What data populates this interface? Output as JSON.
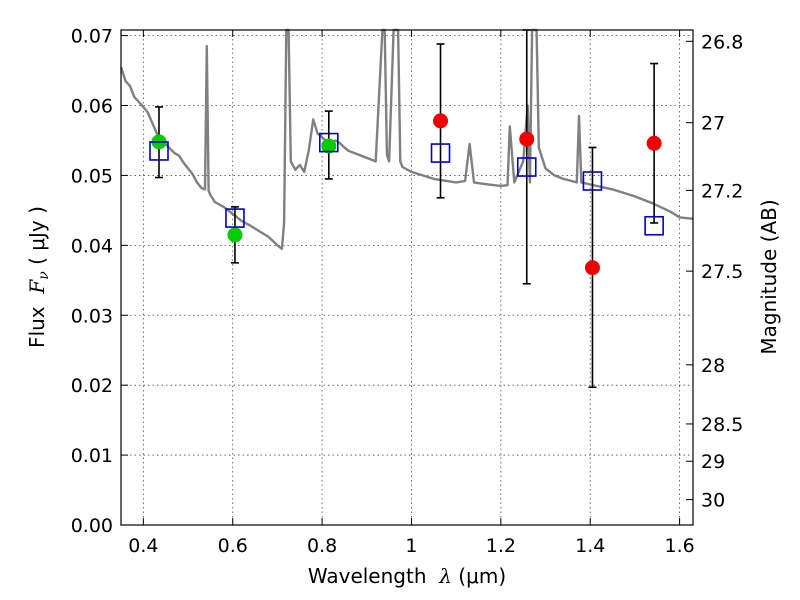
{
  "chart_data": {
    "type": "scatter",
    "xlabel": {
      "prefix": "Wavelength",
      "symbol": "λ",
      "open": " (",
      "unit": "μm",
      "close": ")"
    },
    "ylabel": {
      "prefix": "Flux",
      "symbol": "F",
      "sub": "ν",
      "open": " ( ",
      "unit": "μJy",
      "close": " )"
    },
    "y2label": "Magnitude (AB)",
    "xlim": [
      0.35,
      1.63
    ],
    "ylim": [
      0.0,
      0.0708
    ],
    "grid": true,
    "x_ticks": [
      0.4,
      0.6,
      0.8,
      1.0,
      1.2,
      1.4,
      1.6
    ],
    "x_tick_labels": [
      "0.4",
      "0.6",
      "0.8",
      "1",
      "1.2",
      "1.4",
      "1.6"
    ],
    "y_ticks": [
      0.0,
      0.01,
      0.02,
      0.03,
      0.04,
      0.05,
      0.06,
      0.07
    ],
    "y_tick_labels": [
      "0.00",
      "0.01",
      "0.02",
      "0.03",
      "0.04",
      "0.05",
      "0.06",
      "0.07"
    ],
    "y2_ticks": [
      26.8,
      27,
      27.2,
      27.5,
      28,
      28.5,
      29,
      30
    ],
    "y2_tick_labels": [
      "26.8",
      "27",
      "27.2",
      "27.5",
      "28",
      "28.5",
      "29",
      "30"
    ],
    "colors": {
      "spectrum": "#808080",
      "observed_green": "#00cc00",
      "observed_red": "#ee0000",
      "model": "#0000cc",
      "errorbar": "#000000"
    },
    "series": [
      {
        "kind": "line",
        "points": [
          [
            0.35,
            0.0655
          ],
          [
            0.36,
            0.0635
          ],
          [
            0.37,
            0.0628
          ],
          [
            0.38,
            0.0612
          ],
          [
            0.39,
            0.0605
          ],
          [
            0.4,
            0.0598
          ],
          [
            0.41,
            0.059
          ],
          [
            0.42,
            0.0575
          ],
          [
            0.43,
            0.056
          ],
          [
            0.44,
            0.0553
          ],
          [
            0.45,
            0.0545
          ],
          [
            0.46,
            0.0538
          ],
          [
            0.47,
            0.0532
          ],
          [
            0.48,
            0.0528
          ],
          [
            0.49,
            0.0518
          ],
          [
            0.5,
            0.051
          ],
          [
            0.51,
            0.0502
          ],
          [
            0.52,
            0.049
          ],
          [
            0.53,
            0.0482
          ],
          [
            0.538,
            0.048
          ],
          [
            0.542,
            0.0685
          ],
          [
            0.546,
            0.0478
          ],
          [
            0.55,
            0.0472
          ],
          [
            0.56,
            0.0462
          ],
          [
            0.58,
            0.0455
          ],
          [
            0.6,
            0.0445
          ],
          [
            0.62,
            0.0435
          ],
          [
            0.64,
            0.0428
          ],
          [
            0.66,
            0.042
          ],
          [
            0.68,
            0.0412
          ],
          [
            0.7,
            0.04
          ],
          [
            0.71,
            0.0395
          ],
          [
            0.715,
            0.0432
          ],
          [
            0.72,
            0.0708
          ],
          [
            0.725,
            0.0708
          ],
          [
            0.73,
            0.052
          ],
          [
            0.74,
            0.0508
          ],
          [
            0.75,
            0.0515
          ],
          [
            0.76,
            0.0505
          ],
          [
            0.77,
            0.0535
          ],
          [
            0.78,
            0.058
          ],
          [
            0.79,
            0.056
          ],
          [
            0.8,
            0.0555
          ],
          [
            0.81,
            0.0548
          ],
          [
            0.82,
            0.0545
          ],
          [
            0.83,
            0.055
          ],
          [
            0.84,
            0.0546
          ],
          [
            0.85,
            0.054
          ],
          [
            0.86,
            0.0535
          ],
          [
            0.88,
            0.053
          ],
          [
            0.9,
            0.0525
          ],
          [
            0.92,
            0.052
          ],
          [
            0.935,
            0.0708
          ],
          [
            0.94,
            0.0708
          ],
          [
            0.945,
            0.053
          ],
          [
            0.95,
            0.052
          ],
          [
            0.96,
            0.0708
          ],
          [
            0.97,
            0.0708
          ],
          [
            0.975,
            0.052
          ],
          [
            0.98,
            0.0512
          ],
          [
            1.0,
            0.0505
          ],
          [
            1.05,
            0.0495
          ],
          [
            1.1,
            0.049
          ],
          [
            1.12,
            0.0492
          ],
          [
            1.13,
            0.0545
          ],
          [
            1.14,
            0.049
          ],
          [
            1.16,
            0.0488
          ],
          [
            1.2,
            0.0485
          ],
          [
            1.215,
            0.0486
          ],
          [
            1.22,
            0.057
          ],
          [
            1.23,
            0.049
          ],
          [
            1.25,
            0.052
          ],
          [
            1.26,
            0.06
          ],
          [
            1.265,
            0.049
          ],
          [
            1.27,
            0.0708
          ],
          [
            1.28,
            0.0708
          ],
          [
            1.285,
            0.054
          ],
          [
            1.3,
            0.051
          ],
          [
            1.32,
            0.05
          ],
          [
            1.34,
            0.0495
          ],
          [
            1.37,
            0.049
          ],
          [
            1.375,
            0.0585
          ],
          [
            1.38,
            0.049
          ],
          [
            1.4,
            0.0487
          ],
          [
            1.45,
            0.048
          ],
          [
            1.5,
            0.047
          ],
          [
            1.54,
            0.046
          ],
          [
            1.58,
            0.0448
          ],
          [
            1.6,
            0.044
          ],
          [
            1.63,
            0.0438
          ]
        ]
      },
      {
        "kind": "scatter-errorbar",
        "marker": "circle",
        "color": "#00cc00",
        "points": [
          {
            "x": 0.435,
            "y": 0.0548,
            "y_low": 0.0497,
            "y_high": 0.0598
          },
          {
            "x": 0.605,
            "y": 0.0415,
            "y_low": 0.0375,
            "y_high": 0.0455
          },
          {
            "x": 0.815,
            "y": 0.0542,
            "y_low": 0.0495,
            "y_high": 0.0592
          }
        ]
      },
      {
        "kind": "scatter-errorbar",
        "marker": "circle",
        "color": "#ee0000",
        "points": [
          {
            "x": 1.065,
            "y": 0.0578,
            "y_low": 0.0468,
            "y_high": 0.0688
          },
          {
            "x": 1.258,
            "y": 0.0552,
            "y_low": 0.0345,
            "y_high": 0.0708
          },
          {
            "x": 1.405,
            "y": 0.0368,
            "y_low": 0.0197,
            "y_high": 0.054
          },
          {
            "x": 1.543,
            "y": 0.0546,
            "y_low": 0.0432,
            "y_high": 0.066
          }
        ]
      },
      {
        "kind": "scatter",
        "marker": "open-square",
        "color": "#0000cc",
        "points": [
          {
            "x": 0.435,
            "y": 0.0535
          },
          {
            "x": 0.605,
            "y": 0.0439
          },
          {
            "x": 0.815,
            "y": 0.0547
          },
          {
            "x": 1.065,
            "y": 0.0532
          },
          {
            "x": 1.258,
            "y": 0.0512
          },
          {
            "x": 1.405,
            "y": 0.0492
          },
          {
            "x": 1.543,
            "y": 0.0428
          }
        ]
      }
    ]
  }
}
